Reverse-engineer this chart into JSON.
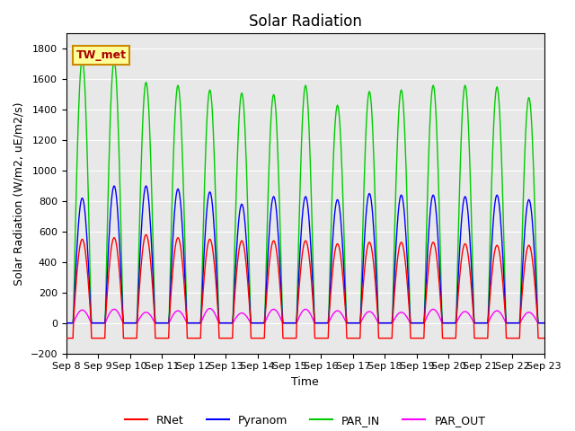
{
  "title": "Solar Radiation",
  "ylabel": "Solar Radiation (W/m2, uE/m2/s)",
  "xlabel": "Time",
  "ylim": [
    -200,
    1900
  ],
  "yticks": [
    -200,
    0,
    200,
    400,
    600,
    800,
    1000,
    1200,
    1400,
    1600,
    1800
  ],
  "x_labels": [
    "Sep 8",
    "Sep 9",
    "Sep 10",
    "Sep 11",
    "Sep 12",
    "Sep 13",
    "Sep 14",
    "Sep 15",
    "Sep 16",
    "Sep 17",
    "Sep 18",
    "Sep 19",
    "Sep 20",
    "Sep 21",
    "Sep 22",
    "Sep 23"
  ],
  "colors": {
    "RNet": "#ff0000",
    "Pyranom": "#0000ff",
    "PAR_IN": "#00cc00",
    "PAR_OUT": "#ff00ff"
  },
  "legend_label": "TW_met",
  "legend_box_color": "#ffff99",
  "legend_box_edge": "#cc8800",
  "background_color": "#e8e8e8",
  "n_days": 15,
  "day_peaks": {
    "RNet": [
      550,
      560,
      580,
      560,
      550,
      540,
      540,
      540,
      520,
      530,
      530,
      530,
      520,
      510,
      510
    ],
    "Pyranom": [
      820,
      900,
      900,
      880,
      860,
      780,
      830,
      830,
      810,
      850,
      840,
      840,
      830,
      840,
      810
    ],
    "PAR_IN": [
      1730,
      1720,
      1580,
      1560,
      1530,
      1510,
      1500,
      1560,
      1430,
      1520,
      1530,
      1560,
      1560,
      1550,
      1480
    ],
    "PAR_OUT": [
      85,
      90,
      70,
      80,
      95,
      65,
      90,
      90,
      80,
      75,
      70,
      90,
      75,
      80,
      70
    ]
  },
  "night_val": {
    "RNet": -100,
    "Pyranom": 0,
    "PAR_IN": 0,
    "PAR_OUT": 0
  }
}
